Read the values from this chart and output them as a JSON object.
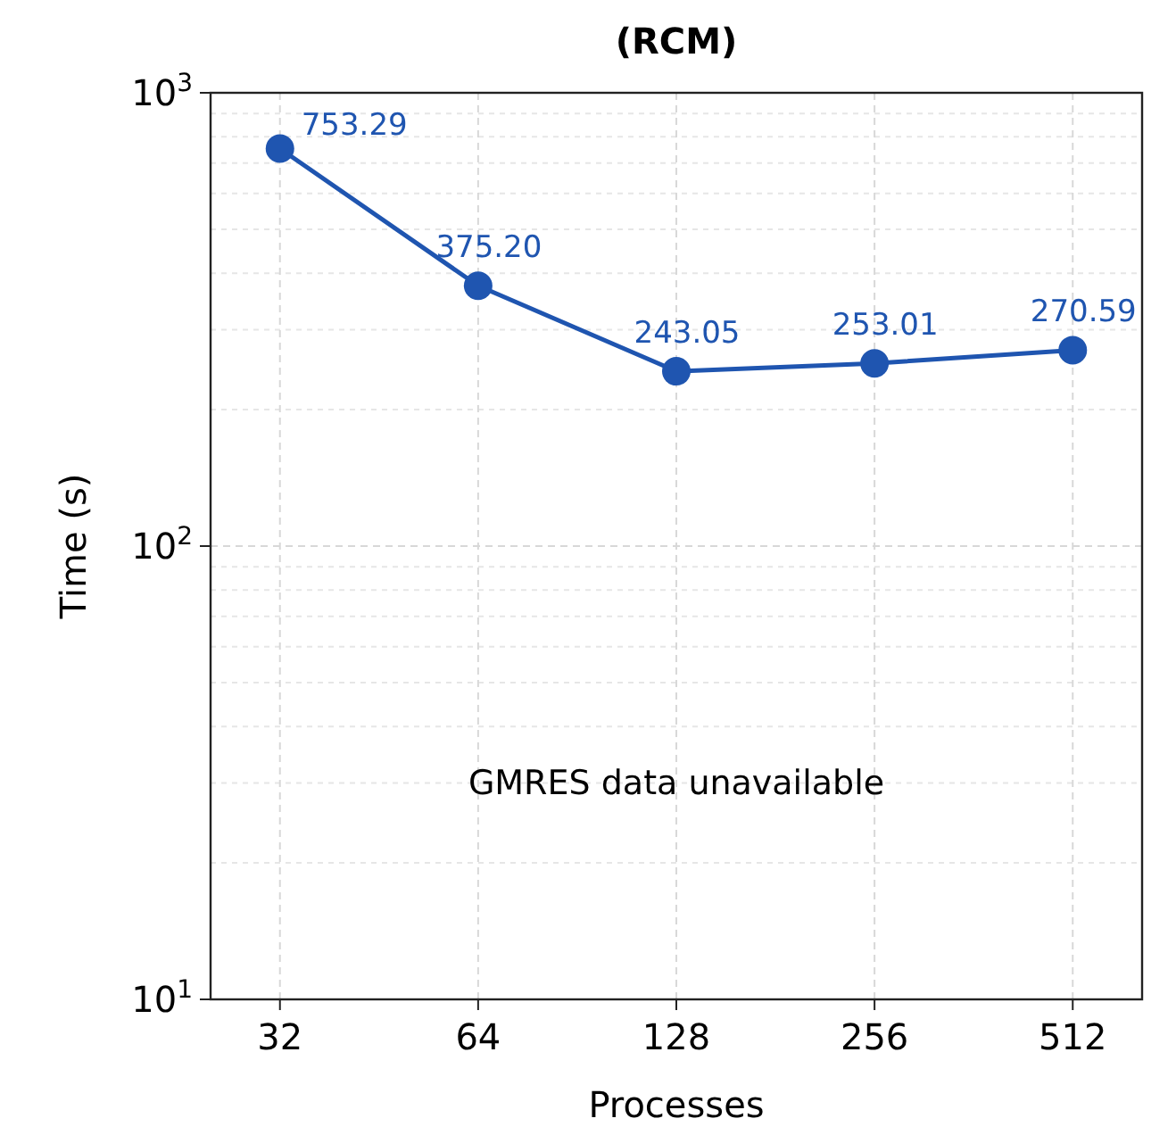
{
  "chart_data": {
    "type": "line",
    "title": "(RCM)",
    "xlabel": "Processes",
    "ylabel": "Time (s)",
    "categories": [
      "32",
      "64",
      "128",
      "256",
      "512"
    ],
    "series": [
      {
        "color": "#1f55b0",
        "values": [
          753.29,
          375.2,
          243.05,
          253.01,
          270.59
        ],
        "value_labels": [
          "753.29",
          "375.20",
          "243.05",
          "253.01",
          "270.59"
        ]
      }
    ],
    "log": "y",
    "ylim": [
      10,
      1000
    ],
    "yticks": [
      {
        "value": 10,
        "label": "10$^{1}$"
      },
      {
        "value": 100,
        "label": "10$^{2}$"
      },
      {
        "value": 1000,
        "label": "10$^{3}$"
      }
    ],
    "grid": true,
    "marker": "circle",
    "line_style": "solid",
    "annotations": [
      "GMRES data unavailable"
    ]
  }
}
